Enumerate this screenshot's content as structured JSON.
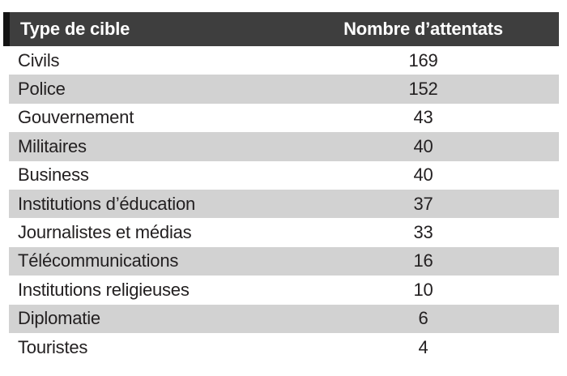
{
  "chart_data": {
    "type": "table",
    "columns": [
      "Type de cible",
      "Nombre d’attentats"
    ],
    "rows": [
      [
        "Civils",
        169
      ],
      [
        "Police",
        152
      ],
      [
        "Gouvernement",
        43
      ],
      [
        "Militaires",
        40
      ],
      [
        "Business",
        40
      ],
      [
        "Institutions d’éducation",
        37
      ],
      [
        "Journalistes et médias",
        33
      ],
      [
        "Télécommunications",
        16
      ],
      [
        "Institutions religieuses",
        10
      ],
      [
        "Diplomatie",
        6
      ],
      [
        "Touristes",
        4
      ]
    ],
    "layout_hints": {
      "zebra_striping": true,
      "first_body_row_background": "white",
      "value_column_alignment": "center",
      "header_style": "dark-bar-white-bold-text-with-black-left-strip"
    }
  },
  "colors": {
    "header_bg": "#3e3e3e",
    "header_strip": "#141414",
    "header_text": "#ffffff",
    "row_alt": "#d2d2d2",
    "text": "#232021",
    "page_bg": "#ffffff"
  }
}
